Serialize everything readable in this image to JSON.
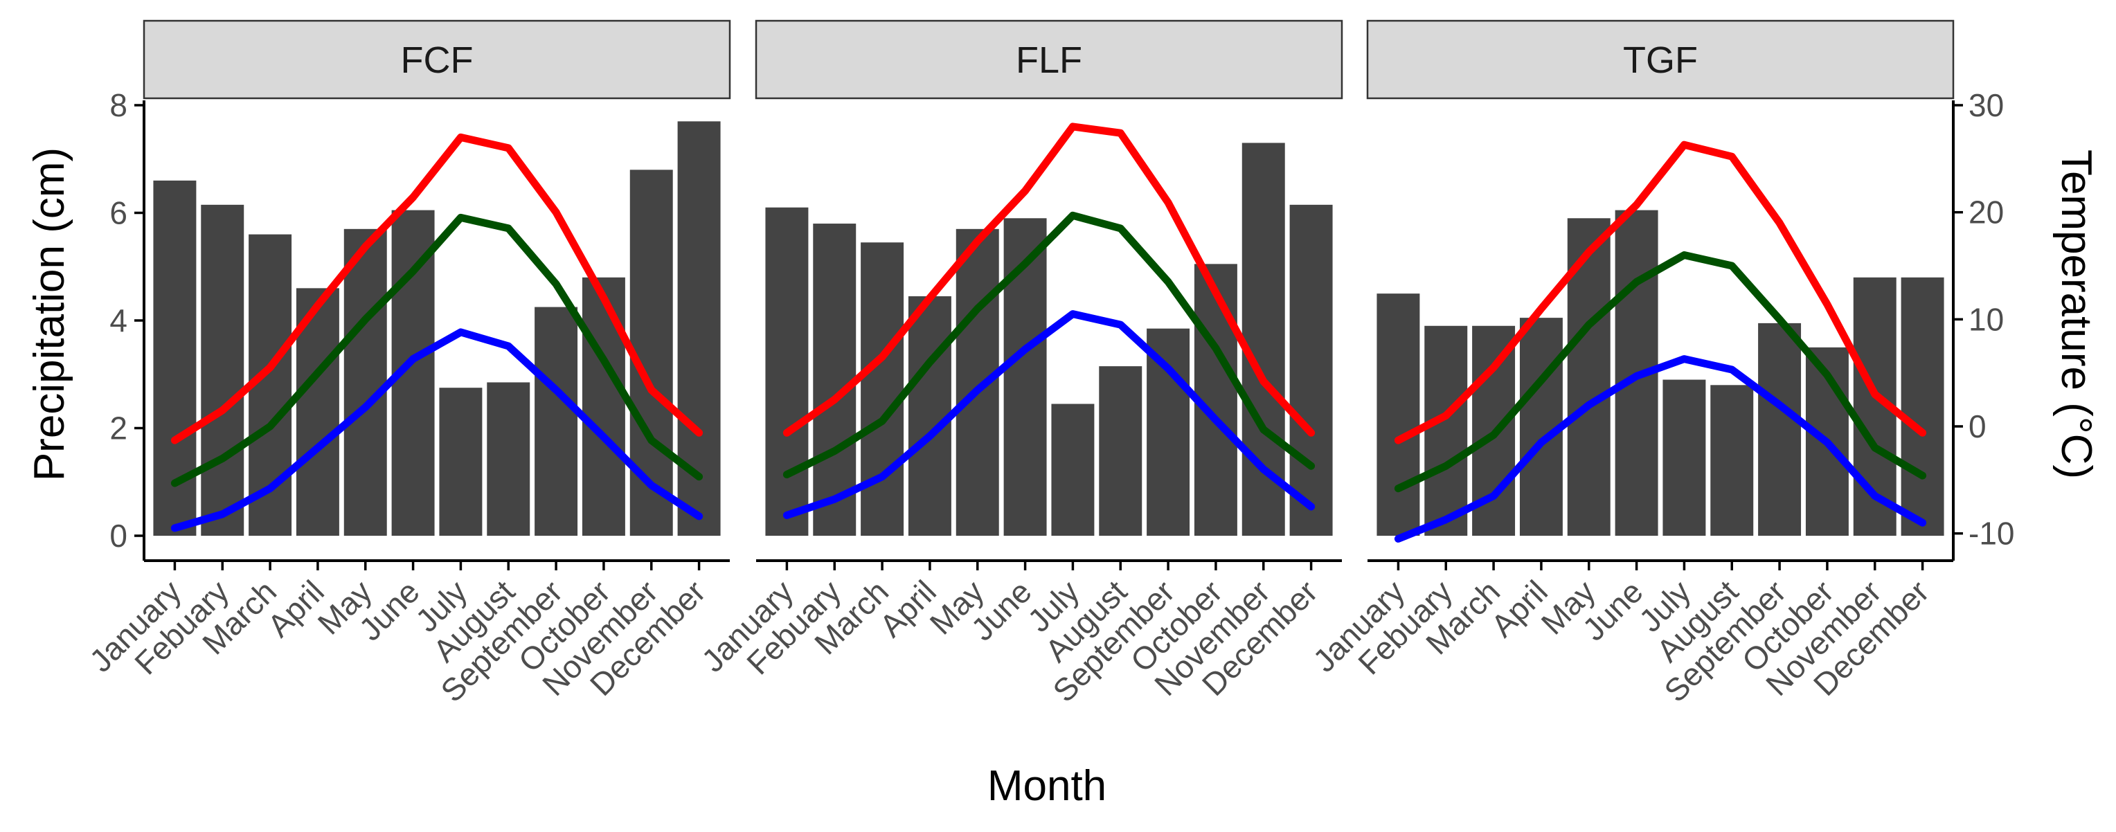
{
  "chart_data": {
    "type": "bar+line",
    "facets": [
      "FCF",
      "FLF",
      "TGF"
    ],
    "categories": [
      "January",
      "Febuary",
      "March",
      "April",
      "May",
      "June",
      "July",
      "August",
      "September",
      "October",
      "November",
      "December"
    ],
    "xlabel": "Month",
    "ylabel": "Precipitation (cm)",
    "y2label": "Temperature (°C)",
    "ylim": [
      0,
      8
    ],
    "yticks": [
      0,
      2,
      4,
      6,
      8
    ],
    "y2lim": [
      -10,
      30
    ],
    "y2ticks": [
      -10,
      0,
      10,
      20,
      30
    ],
    "colors": {
      "bars": "#444444",
      "max": "#ff0000",
      "mean": "#005000",
      "min": "#0000ff"
    },
    "panels": [
      {
        "name": "FCF",
        "precip": [
          6.6,
          6.15,
          5.6,
          4.6,
          5.7,
          6.05,
          2.75,
          2.85,
          4.25,
          4.8,
          6.8,
          7.7
        ],
        "temp_max": [
          -1.3,
          1.5,
          5.5,
          11.3,
          16.8,
          21.4,
          27.0,
          26.0,
          20.0,
          12.0,
          3.4,
          -0.6
        ],
        "temp_mean": [
          -5.3,
          -3.0,
          0.0,
          5.0,
          10.0,
          14.5,
          19.5,
          18.5,
          13.3,
          6.2,
          -1.3,
          -4.7
        ],
        "temp_min": [
          -9.5,
          -8.2,
          -5.8,
          -2.0,
          1.8,
          6.3,
          8.8,
          7.5,
          3.4,
          -1.0,
          -5.5,
          -8.4
        ]
      },
      {
        "name": "FLF",
        "precip": [
          6.1,
          5.8,
          5.45,
          4.45,
          5.7,
          5.9,
          2.45,
          3.15,
          3.85,
          5.05,
          7.3,
          6.15
        ],
        "temp_max": [
          -0.6,
          2.5,
          6.5,
          12.0,
          17.3,
          22.0,
          28.0,
          27.4,
          20.9,
          12.5,
          4.2,
          -0.6
        ],
        "temp_mean": [
          -4.5,
          -2.3,
          0.5,
          6.0,
          11.0,
          15.2,
          19.7,
          18.5,
          13.5,
          7.3,
          -0.3,
          -3.7
        ],
        "temp_min": [
          -8.3,
          -6.8,
          -4.7,
          -0.9,
          3.4,
          7.2,
          10.5,
          9.5,
          5.4,
          0.6,
          -4.0,
          -7.5
        ]
      },
      {
        "name": "TGF",
        "precip": [
          4.5,
          3.9,
          3.9,
          4.05,
          5.9,
          6.05,
          2.9,
          2.8,
          3.95,
          3.5,
          4.8,
          4.8
        ],
        "temp_max": [
          -1.3,
          1.0,
          5.5,
          11.0,
          16.3,
          20.7,
          26.3,
          25.2,
          19.0,
          11.4,
          3.0,
          -0.6
        ],
        "temp_mean": [
          -5.8,
          -3.7,
          -0.8,
          4.3,
          9.5,
          13.5,
          16.0,
          15.0,
          10.0,
          4.8,
          -2.0,
          -4.6
        ],
        "temp_min": [
          -10.5,
          -8.7,
          -6.5,
          -1.5,
          2.0,
          4.7,
          6.3,
          5.3,
          2.0,
          -1.5,
          -6.5,
          -9.0
        ]
      }
    ]
  }
}
